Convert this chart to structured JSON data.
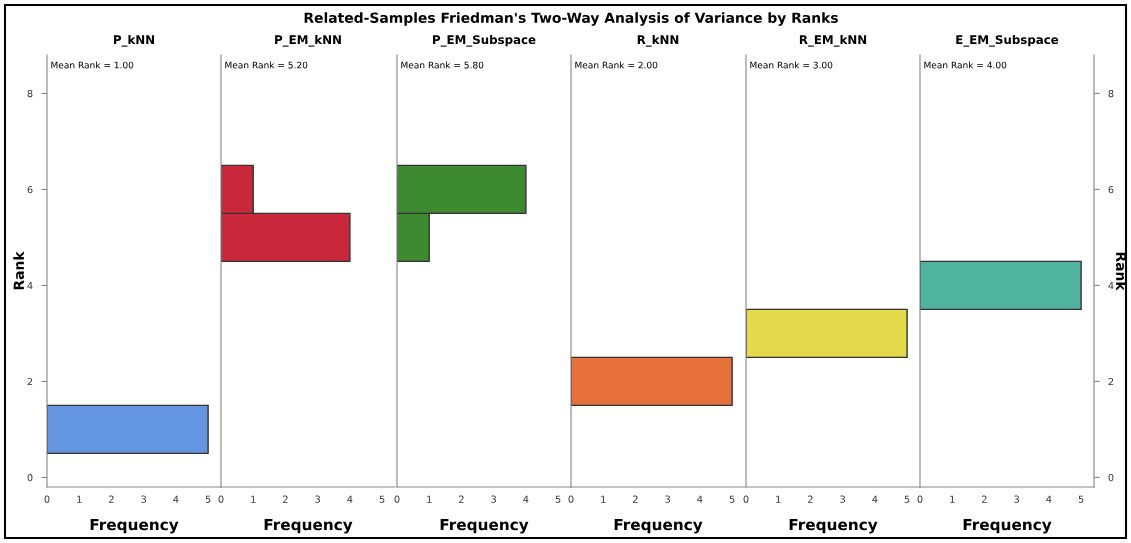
{
  "chart_data": [
    {
      "type": "other",
      "title": "Related-Samples Friedman's Two-Way Analysis of Variance by Ranks"
    },
    {
      "type": "histogram",
      "orientation": "horizontal",
      "subtitle": "P_kNN",
      "xlabel": "Frequency",
      "ylabel": "Rank",
      "annotations": [
        "Mean Rank = 1.00"
      ],
      "bins": [
        0.5,
        1.5
      ],
      "values": [
        5
      ],
      "color": "#6495e0",
      "xlim": [
        0,
        5.4
      ],
      "xticks": [
        0,
        1,
        2,
        3,
        4,
        5
      ],
      "ylim": [
        -0.2,
        8.8
      ],
      "yticks": [
        0,
        2,
        4,
        6,
        8
      ],
      "grid": false
    },
    {
      "type": "histogram",
      "orientation": "horizontal",
      "subtitle": "P_EM_kNN",
      "xlabel": "Frequency",
      "annotations": [
        "Mean Rank = 5.20"
      ],
      "bins": [
        4.5,
        5.5,
        6.5
      ],
      "values": [
        4,
        1
      ],
      "color": "#c8283a",
      "xlim": [
        0,
        5.4
      ],
      "xticks": [
        0,
        1,
        2,
        3,
        4,
        5
      ],
      "ylim": [
        -0.2,
        8.8
      ],
      "tick_labels": "x",
      "grid": false
    },
    {
      "type": "histogram",
      "orientation": "horizontal",
      "subtitle": "P_EM_Subspace",
      "xlabel": "Frequency",
      "annotations": [
        "Mean Rank = 5.80"
      ],
      "bins": [
        4.5,
        5.5,
        6.5
      ],
      "values": [
        1,
        4
      ],
      "color": "#3d8a30",
      "xlim": [
        0,
        5.4
      ],
      "xticks": [
        0,
        1,
        2,
        3,
        4,
        5
      ],
      "ylim": [
        -0.2,
        8.8
      ],
      "tick_labels": "x",
      "grid": false
    },
    {
      "type": "histogram",
      "orientation": "horizontal",
      "subtitle": "R_kNN",
      "xlabel": "Frequency",
      "annotations": [
        "Mean Rank = 2.00"
      ],
      "bins": [
        1.5,
        2.5
      ],
      "values": [
        5
      ],
      "color": "#e5703a",
      "xlim": [
        0,
        5.4
      ],
      "xticks": [
        0,
        1,
        2,
        3,
        4,
        5
      ],
      "ylim": [
        -0.2,
        8.8
      ],
      "tick_labels": "x",
      "grid": false
    },
    {
      "type": "histogram",
      "orientation": "horizontal",
      "subtitle": "R_EM_kNN",
      "xlabel": "Frequency",
      "annotations": [
        "Mean Rank = 3.00"
      ],
      "bins": [
        2.5,
        3.5
      ],
      "values": [
        5
      ],
      "color": "#e3d94a",
      "xlim": [
        0,
        5.4
      ],
      "xticks": [
        0,
        1,
        2,
        3,
        4,
        5
      ],
      "ylim": [
        -0.2,
        8.8
      ],
      "tick_labels": "x",
      "grid": false
    },
    {
      "type": "histogram",
      "orientation": "horizontal",
      "subtitle": "E_EM_Subspace",
      "xlabel": "Frequency",
      "ylabel": "Rank",
      "annotations": [
        "Mean Rank = 4.00"
      ],
      "bins": [
        3.5,
        4.5
      ],
      "values": [
        5
      ],
      "color": "#4fb3a0",
      "xlim": [
        0,
        5.4
      ],
      "xticks": [
        0,
        1,
        2,
        3,
        4,
        5
      ],
      "ylim": [
        -0.2,
        8.8
      ],
      "yticks": [
        0,
        2,
        4,
        6,
        8
      ],
      "grid": false
    }
  ]
}
